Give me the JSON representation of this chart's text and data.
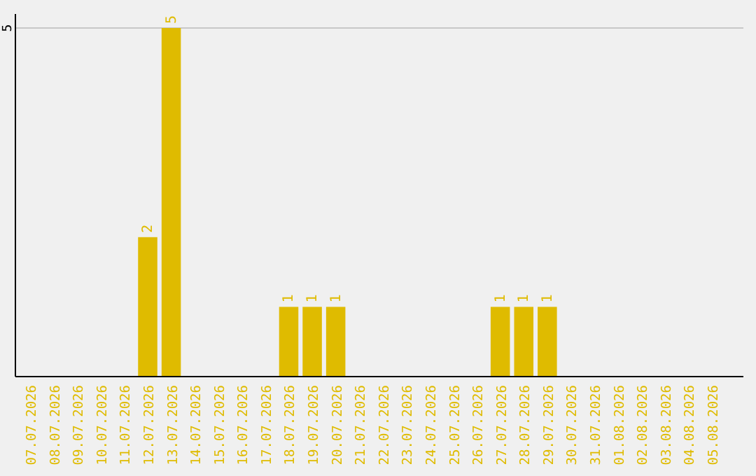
{
  "chart_data": {
    "type": "bar",
    "categories": [
      "07.07.2026",
      "08.07.2026",
      "09.07.2026",
      "10.07.2026",
      "11.07.2026",
      "12.07.2026",
      "13.07.2026",
      "14.07.2026",
      "15.07.2026",
      "16.07.2026",
      "17.07.2026",
      "18.07.2026",
      "19.07.2026",
      "20.07.2026",
      "21.07.2026",
      "22.07.2026",
      "23.07.2026",
      "24.07.2026",
      "25.07.2026",
      "26.07.2026",
      "27.07.2026",
      "28.07.2026",
      "29.07.2026",
      "30.07.2026",
      "31.07.2026",
      "01.08.2026",
      "02.08.2026",
      "03.08.2026",
      "04.08.2026",
      "05.08.2026"
    ],
    "values": [
      0,
      0,
      0,
      0,
      0,
      2,
      5,
      0,
      0,
      0,
      0,
      1,
      1,
      1,
      0,
      0,
      0,
      0,
      0,
      0,
      1,
      1,
      1,
      0,
      0,
      0,
      0,
      0,
      0,
      0
    ],
    "value_labels": [
      null,
      null,
      null,
      null,
      null,
      "2",
      "5",
      null,
      null,
      null,
      null,
      "1",
      "1",
      "1",
      null,
      null,
      null,
      null,
      null,
      null,
      "1",
      "1",
      "1",
      null,
      null,
      null,
      null,
      null,
      null,
      null
    ],
    "color": "#dfbb00",
    "ylim": [
      0,
      5
    ],
    "yticks": [
      5
    ],
    "ref_lines": [
      {
        "axis": "y",
        "value": 5,
        "color": "#c8c8c8"
      }
    ]
  }
}
